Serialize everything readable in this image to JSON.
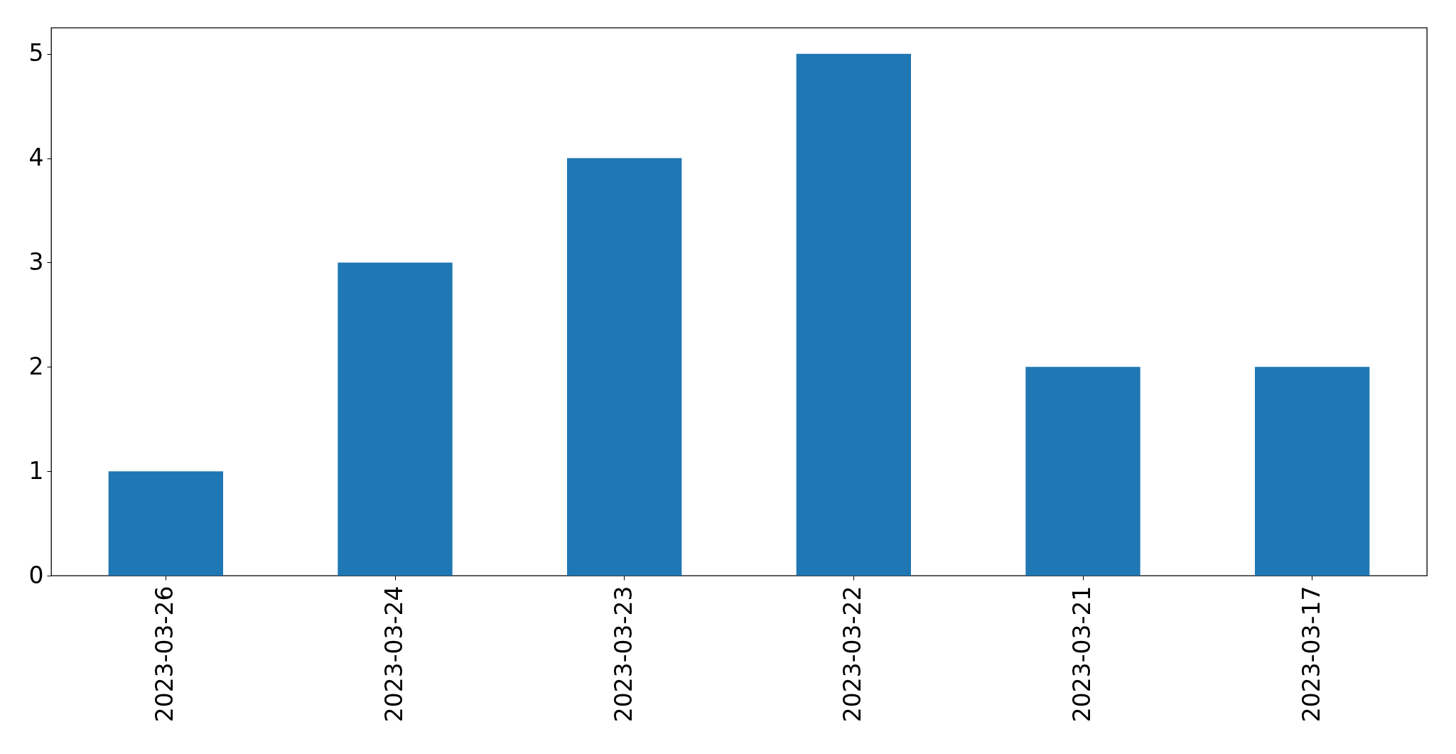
{
  "chart_data": {
    "type": "bar",
    "categories": [
      "2023-03-26",
      "2023-03-24",
      "2023-03-23",
      "2023-03-22",
      "2023-03-21",
      "2023-03-17"
    ],
    "values": [
      1,
      3,
      4,
      5,
      2,
      2
    ],
    "color": "#1f77b4",
    "ylim": [
      0,
      5.25
    ],
    "yticks": [
      0,
      1,
      2,
      3,
      4,
      5
    ]
  }
}
